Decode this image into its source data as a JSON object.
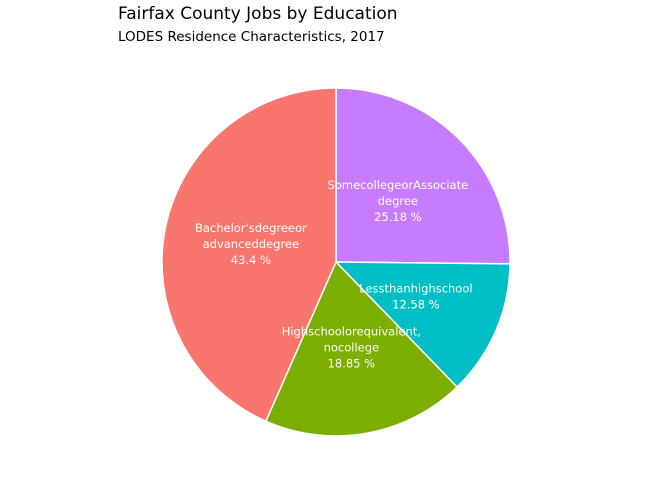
{
  "title": "Fairfax County Jobs by Education",
  "subtitle": "LODES Residence Characteristics, 2017",
  "chart_data": {
    "type": "pie",
    "title": "Fairfax County Jobs by Education",
    "subtitle": "LODES Residence Characteristics, 2017",
    "unit": "%",
    "slices": [
      {
        "label": "SomecollegeorAssociate degree",
        "label_lines": [
          "SomecollegeorAssociate",
          "degree"
        ],
        "value": 25.18,
        "value_text": "25.18 %",
        "color": "#C77CFF"
      },
      {
        "label": "Lessthanhighschool",
        "label_lines": [
          "Lessthanhighschool"
        ],
        "value": 12.58,
        "value_text": "12.58 %",
        "color": "#00BFC4"
      },
      {
        "label": "Highschoolorequivalent, nocollege",
        "label_lines": [
          "Highschoolorequivalent,",
          "nocollege"
        ],
        "value": 18.85,
        "value_text": "18.85 %",
        "color": "#7CAE00"
      },
      {
        "label": "Bachelor'sdegreeor advanceddegree",
        "label_lines": [
          "Bachelor'sdegreeor",
          "advanceddegree"
        ],
        "value": 43.4,
        "value_text": "43.4 %",
        "color": "#F8766D"
      }
    ],
    "direction": "clockwise",
    "start": "top"
  }
}
